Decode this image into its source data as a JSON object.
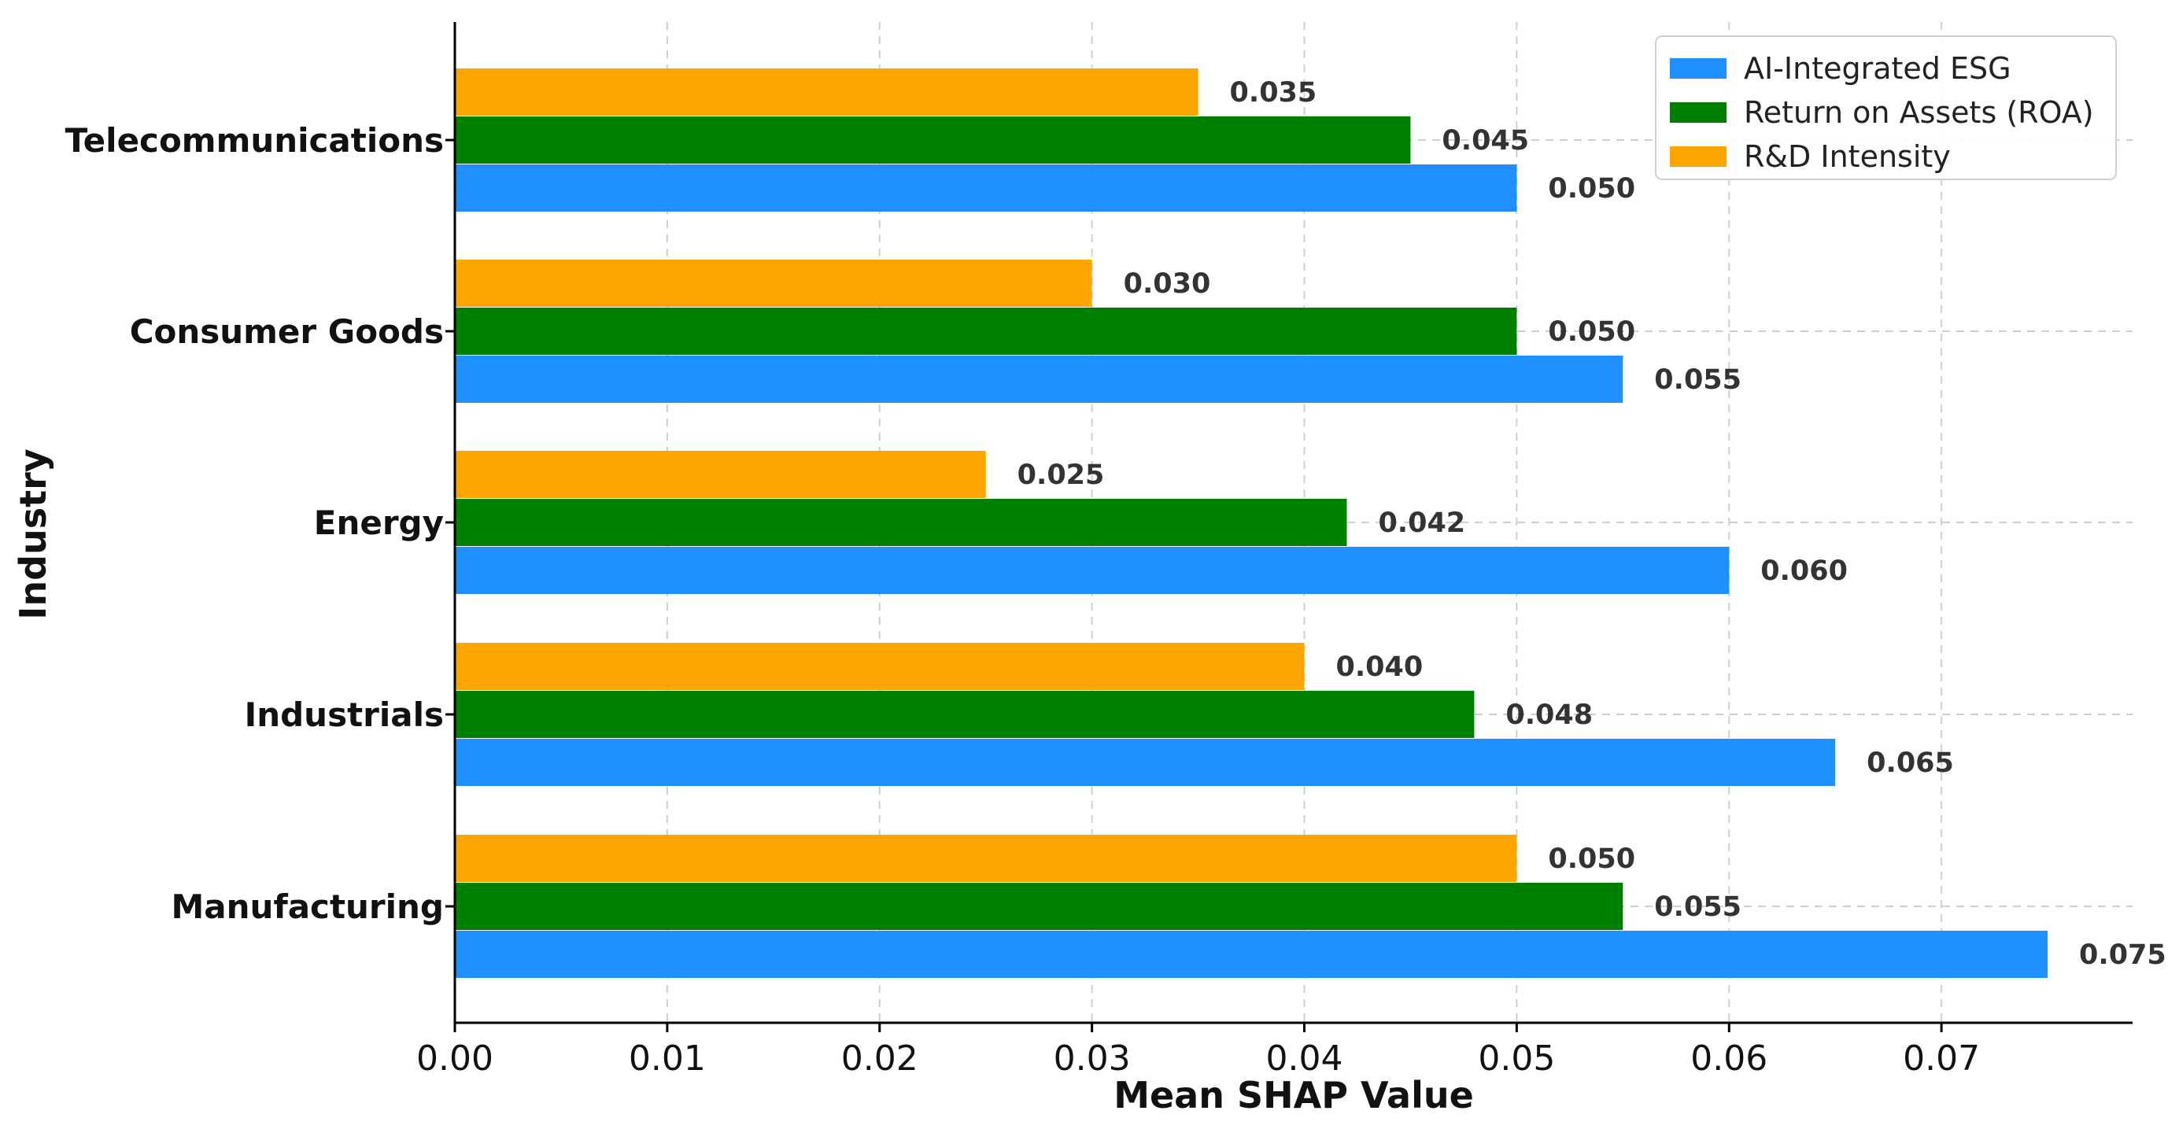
{
  "chart_data": {
    "type": "bar",
    "orientation": "horizontal",
    "title": "",
    "xlabel": "Mean SHAP Value",
    "ylabel": "Industry",
    "xlim": [
      0,
      0.079
    ],
    "xticks": [
      "0.00",
      "0.01",
      "0.02",
      "0.03",
      "0.04",
      "0.05",
      "0.06",
      "0.07"
    ],
    "grid": true,
    "legend_position": "top-right",
    "categories": [
      "Telecommunications",
      "Consumer Goods",
      "Energy",
      "Industrials",
      "Manufacturing"
    ],
    "series": [
      {
        "name": "AI-Integrated ESG",
        "color": "#1e90ff",
        "values": [
          0.05,
          0.055,
          0.06,
          0.065,
          0.075
        ],
        "labels": [
          "0.050",
          "0.055",
          "0.060",
          "0.065",
          "0.075"
        ]
      },
      {
        "name": "Return on Assets (ROA)",
        "color": "#008000",
        "values": [
          0.045,
          0.05,
          0.042,
          0.048,
          0.055
        ],
        "labels": [
          "0.045",
          "0.050",
          "0.042",
          "0.048",
          "0.055"
        ]
      },
      {
        "name": "R&D Intensity",
        "color": "#ffa500",
        "values": [
          0.035,
          0.03,
          0.025,
          0.04,
          0.05
        ],
        "labels": [
          "0.035",
          "0.030",
          "0.025",
          "0.040",
          "0.050"
        ]
      }
    ]
  }
}
